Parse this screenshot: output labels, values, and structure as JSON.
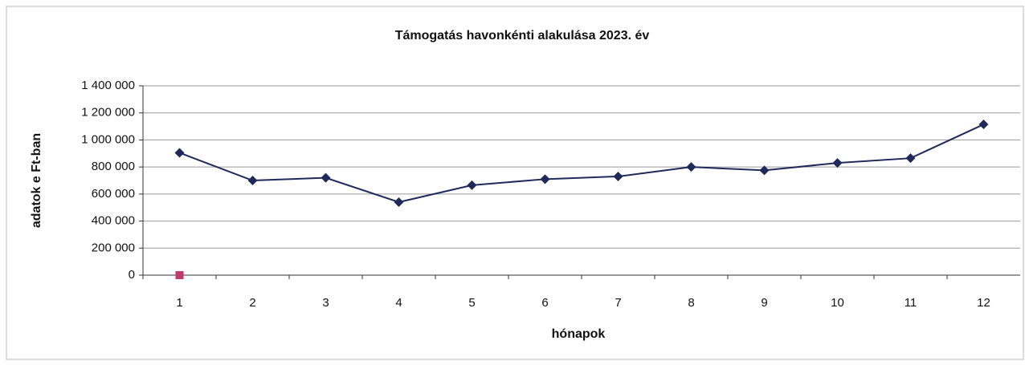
{
  "chart_data": {
    "type": "line",
    "title": "Támogatás havonkénti alakulása 2023. év",
    "x_label": "hónapok",
    "y_label": "adatok e Ft-ban",
    "categories": [
      "1",
      "2",
      "3",
      "4",
      "5",
      "6",
      "7",
      "8",
      "9",
      "10",
      "11",
      "12"
    ],
    "series": [
      {
        "color": "#1f2a5a",
        "marker": "diamond",
        "values": [
          905000,
          700000,
          720000,
          540000,
          665000,
          710000,
          730000,
          800000,
          775000,
          830000,
          865000,
          1115000
        ]
      },
      {
        "color": "#c0396b",
        "marker": "square",
        "values": [
          0,
          null,
          null,
          null,
          null,
          null,
          null,
          null,
          null,
          null,
          null,
          null
        ]
      }
    ],
    "ylim": [
      0,
      1400000
    ],
    "yticks": [
      0,
      {
        "value": 200000,
        "label": "200 000"
      },
      {
        "value": 400000,
        "label": "400 000"
      },
      {
        "value": 600000,
        "label": "600 000"
      },
      {
        "value": 800000,
        "label": "800 000"
      },
      {
        "value": 1000000,
        "label": "1 000 000"
      },
      {
        "value": 1200000,
        "label": "1 200 000"
      },
      {
        "value": 1400000,
        "label": "1 400 000"
      }
    ],
    "grid": true
  }
}
